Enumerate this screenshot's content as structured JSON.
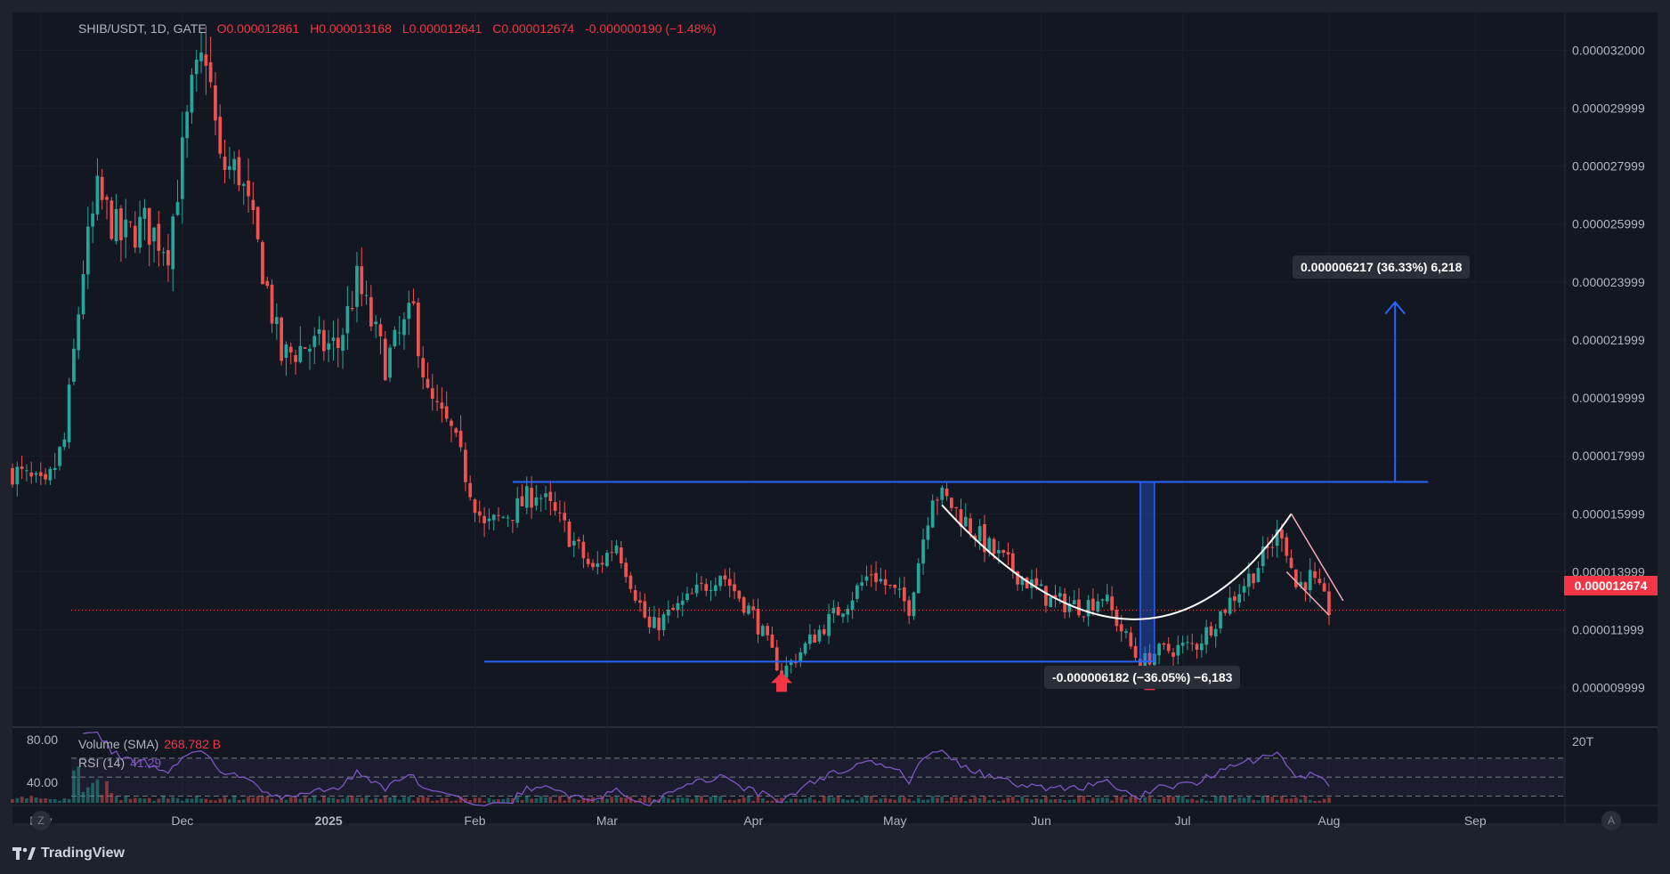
{
  "header": {
    "symbol": "SHIB/USDT, 1D, GATE",
    "open": "O0.000012861",
    "high": "H0.000013168",
    "low": "L0.000012641",
    "close": "C0.000012674",
    "change": "-0.000000190 (−1.48%)"
  },
  "indicators": {
    "volume_label": "Volume (SMA)",
    "volume_value": "268.782 B",
    "rsi_label": "RSI (14)",
    "rsi_value": "41.29",
    "rsi_axis": [
      "80.00",
      "40.00"
    ],
    "volume_axis": "20T"
  },
  "price_axis": [
    "0.000032000",
    "0.000029999",
    "0.000027999",
    "0.000025999",
    "0.000023999",
    "0.000021999",
    "0.000019999",
    "0.000017999",
    "0.000015999",
    "0.000013999",
    "0.000011999",
    "0.000009999"
  ],
  "last_price": "0.000012674",
  "measure_up": "0.000006217 (36.33%) 6,218",
  "measure_down": "-0.000006182 (−36.05%) −6,183",
  "time_axis": [
    "Nov",
    "Dec",
    "2025",
    "Feb",
    "Mar",
    "Apr",
    "May",
    "Jun",
    "Jul",
    "Aug",
    "Sep"
  ],
  "branding": "TradingView",
  "buttons": {
    "z": "Z",
    "a": "A"
  },
  "colors": {
    "up": "#26a69a",
    "down": "#ef5350",
    "line": "#2962ff",
    "bg": "#131722",
    "rsi": "#7e57c2"
  },
  "chart_data": {
    "type": "candlestick",
    "title": "SHIB/USDT, 1D, GATE",
    "ylim": [
      8.7e-06,
      3.33e-05
    ],
    "x_range": [
      "2024-10-26",
      "2025-09-20"
    ],
    "close_path": [
      [
        "2024-10-26",
        1.75e-05
      ],
      [
        "2024-11-02",
        1.68e-05
      ],
      [
        "2024-11-06",
        1.85e-05
      ],
      [
        "2024-11-10",
        2.45e-05
      ],
      [
        "2024-11-13",
        2.7e-05
      ],
      [
        "2024-11-18",
        2.55e-05
      ],
      [
        "2024-11-23",
        2.6e-05
      ],
      [
        "2024-11-28",
        2.52e-05
      ],
      [
        "2024-12-03",
        3.05e-05
      ],
      [
        "2024-12-06",
        3.2e-05
      ],
      [
        "2024-12-09",
        2.8e-05
      ],
      [
        "2024-12-13",
        2.78e-05
      ],
      [
        "2024-12-18",
        2.45e-05
      ],
      [
        "2024-12-22",
        2.14e-05
      ],
      [
        "2024-12-27",
        2.18e-05
      ],
      [
        "2025-01-03",
        2.18e-05
      ],
      [
        "2025-01-07",
        2.4e-05
      ],
      [
        "2025-01-13",
        2.12e-05
      ],
      [
        "2025-01-19",
        2.3e-05
      ],
      [
        "2025-01-22",
        2e-05
      ],
      [
        "2025-01-27",
        1.88e-05
      ],
      [
        "2025-02-03",
        1.55e-05
      ],
      [
        "2025-02-10",
        1.62e-05
      ],
      [
        "2025-02-14",
        1.68e-05
      ],
      [
        "2025-02-20",
        1.55e-05
      ],
      [
        "2025-02-26",
        1.4e-05
      ],
      [
        "2025-03-03",
        1.5e-05
      ],
      [
        "2025-03-10",
        1.2e-05
      ],
      [
        "2025-03-18",
        1.3e-05
      ],
      [
        "2025-03-25",
        1.4e-05
      ],
      [
        "2025-04-01",
        1.25e-05
      ],
      [
        "2025-04-07",
        1.05e-05
      ],
      [
        "2025-04-14",
        1.18e-05
      ],
      [
        "2025-04-21",
        1.3e-05
      ],
      [
        "2025-04-26",
        1.4e-05
      ],
      [
        "2025-05-04",
        1.28e-05
      ],
      [
        "2025-05-09",
        1.68e-05
      ],
      [
        "2025-05-13",
        1.63e-05
      ],
      [
        "2025-05-21",
        1.48e-05
      ],
      [
        "2025-05-28",
        1.38e-05
      ],
      [
        "2025-06-03",
        1.3e-05
      ],
      [
        "2025-06-10",
        1.28e-05
      ],
      [
        "2025-06-14",
        1.32e-05
      ],
      [
        "2025-06-22",
        1.08e-05
      ],
      [
        "2025-06-25",
        1.12e-05
      ],
      [
        "2025-07-04",
        1.15e-05
      ],
      [
        "2025-07-11",
        1.3e-05
      ],
      [
        "2025-07-16",
        1.4e-05
      ],
      [
        "2025-07-22",
        1.55e-05
      ],
      [
        "2025-07-25",
        1.35e-05
      ],
      [
        "2025-07-28",
        1.38e-05
      ],
      [
        "2025-08-01",
        1.27e-05
      ]
    ],
    "annotations": {
      "range_top": 1.71e-05,
      "range_bottom": 1.09e-05,
      "range_top_from": "2025-02-09",
      "range_top_to": "2025-08-22",
      "range_bottom_from": "2025-02-03",
      "range_bottom_to": "2025-06-24",
      "target_date": "2025-08-15",
      "target_price": 2.33e-05,
      "last_price": 1.2674e-05
    }
  }
}
